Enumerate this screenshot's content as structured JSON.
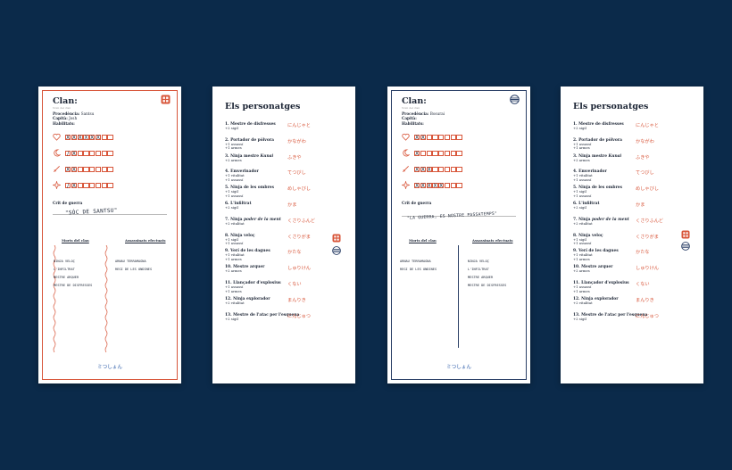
{
  "clan_cards": [
    {
      "title": "Clan:",
      "subtitle": "Nom del clan",
      "info": [
        {
          "label": "Procedència:",
          "value": "Santsu"
        },
        {
          "label": "Capità:",
          "value": "Josh"
        },
        {
          "label": "Habilitats:",
          "value": ""
        }
      ],
      "stats": [
        {
          "icon": "heart-icon",
          "marks": [
            "X",
            "X",
            "X",
            "X",
            "X",
            "X",
            "",
            ""
          ]
        },
        {
          "icon": "moon-icon",
          "marks": [
            "/",
            "X",
            "",
            "",
            "",
            "",
            "",
            ""
          ]
        },
        {
          "icon": "sword-icon",
          "marks": [
            "X",
            "X",
            "",
            "",
            "",
            "",
            "",
            ""
          ]
        },
        {
          "icon": "shuriken-icon",
          "marks": [
            "/",
            "X",
            "",
            "",
            "",
            "",
            "",
            ""
          ]
        }
      ],
      "crit_label": "Crit de guerra",
      "crit_text": "\"SÓC DE SANTSU\"",
      "col_left": "Morts del clan",
      "col_right": "Assassinats efectuats",
      "left_list": [
        "NINJA VELOÇ",
        "L'INFILTRAT",
        "MESTRE ARQUER",
        "MESTRE DE DISFRESSES"
      ],
      "right_list": [
        "ARNAU TERRAMAGNA",
        "REGI DE LES ONDINES"
      ],
      "footer": "ミつしょん"
    },
    {
      "title": "Clan:",
      "subtitle": "Nom del clan",
      "info": [
        {
          "label": "Procedència:",
          "value": "Bosurai"
        },
        {
          "label": "Capità:",
          "value": ""
        },
        {
          "label": "Habilitats:",
          "value": ""
        }
      ],
      "stats": [
        {
          "icon": "heart-icon",
          "marks": [
            "X",
            "X",
            "",
            "",
            "",
            "",
            "",
            ""
          ]
        },
        {
          "icon": "moon-icon",
          "marks": [
            "X",
            "",
            "",
            "",
            "",
            "",
            "",
            ""
          ]
        },
        {
          "icon": "sword-icon",
          "marks": [
            "X",
            "X",
            "X",
            "",
            "",
            "",
            "",
            ""
          ]
        },
        {
          "icon": "shuriken-icon",
          "marks": [
            "X",
            "X",
            "X",
            "X",
            "X",
            "",
            "",
            ""
          ]
        }
      ],
      "crit_label": "Crit de guerra",
      "crit_text": "\"LA GUERRA, ES NOSTRE PASSATEMPS\"",
      "col_left": "Morts del clan",
      "col_right": "Assassinats efectuats",
      "left_list": [
        "ARNAU TERRAMAGNA",
        "REGI DE LES ONDINES"
      ],
      "right_list": [
        "NINJA VELOÇ",
        "L'INFILTRAT",
        "MESTRE ARQUER",
        "MESTRE DE DISFRESSES"
      ],
      "footer": "ミつしょん"
    }
  ],
  "characters_title": "Els personatges",
  "characters": [
    {
      "name": "1. Mestre de disfresses",
      "subs": [
        "+2 sigil"
      ],
      "jp": "にんじゃと"
    },
    {
      "name": "2. Portador de pòlvora",
      "subs": [
        "+1 assassí",
        "+1 armes"
      ],
      "jp": "かながわ"
    },
    {
      "name": "3. Ninja mestre ",
      "name_italic": "Kunai",
      "subs": [
        "+2 armes"
      ],
      "jp": "ふきや"
    },
    {
      "name": "4. Emverinador",
      "subs": [
        "+1 vitalitat",
        "+1 assassí"
      ],
      "jp": "てつびし"
    },
    {
      "name": "5. Ninja de les ombres",
      "subs": [
        "+1 sigil",
        "+1 assassí"
      ],
      "jp": "めしゃびし"
    },
    {
      "name": "6. L'infiltrat",
      "subs": [
        "+2 sigil"
      ],
      "jp": "かま"
    },
    {
      "name": "7. Ninja ",
      "name_italic": "poder de la ment",
      "subs": [
        "+2 vitalitat"
      ],
      "jp": "くさりふんど"
    },
    {
      "name": "8. Ninja veloç",
      "subs": [
        "+1 sigil",
        "+1 assassí"
      ],
      "jp": "くさりがま"
    },
    {
      "name": "9. Verí de les dagues",
      "subs": [
        "+1 vitalitat",
        "+1 armes"
      ],
      "jp": "かたな"
    },
    {
      "name": "10. Mestre arquer",
      "subs": [
        "+2 armes"
      ],
      "jp": "しゅりけん"
    },
    {
      "name": "11. Llançador d'explosius",
      "subs": [
        "+1 assassí",
        "+1 armes"
      ],
      "jp": "くない"
    },
    {
      "name": "12. Ninja explorador",
      "subs": [
        "+2 vitalitat"
      ],
      "jp": "まんりき"
    },
    {
      "name": "13. Mestre de l'atac per l'esquena",
      "subs": [
        "+2 sigil"
      ],
      "jp": "にんじゅつ"
    }
  ],
  "characters_jp_extra": [
    "たんとじゅつ",
    "あしこ"
  ],
  "colors": {
    "background": "#0b2a4a",
    "accent_red": "#d8563a",
    "accent_blue": "#2a3f66",
    "footer_blue": "#2a5aa8"
  }
}
